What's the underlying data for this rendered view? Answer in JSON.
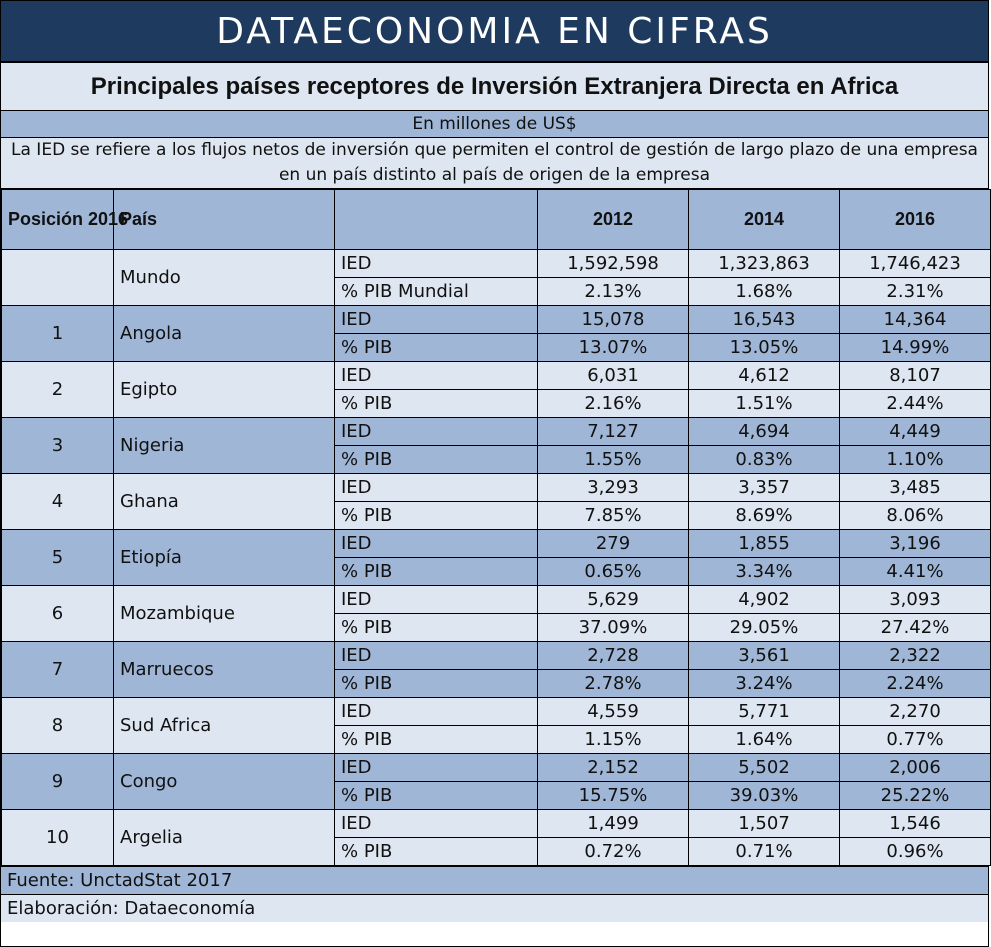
{
  "banner": "DATAECONOMIA EN CIFRAS",
  "title": "Principales países receptores de Inversión Extranjera Directa en Africa",
  "units": "En millones de US$",
  "note": "La IED se refiere a los flujos netos de inversión que permiten el control de gestión de largo plazo de una empresa en un país distinto al país de origen de la empresa",
  "headers": {
    "position": "Posición 2016",
    "country": "País",
    "metric": "",
    "y2012": "2012",
    "y2014": "2014",
    "y2016": "2016"
  },
  "rows": [
    {
      "pos": "",
      "country": "Mundo",
      "m1": "IED",
      "v1": [
        "1,592,598",
        "1,323,863",
        "1,746,423"
      ],
      "m2": "% PIB Mundial",
      "v2": [
        "2.13%",
        "1.68%",
        "2.31%"
      ]
    },
    {
      "pos": "1",
      "country": "Angola",
      "m1": "IED",
      "v1": [
        "15,078",
        "16,543",
        "14,364"
      ],
      "m2": "% PIB",
      "v2": [
        "13.07%",
        "13.05%",
        "14.99%"
      ]
    },
    {
      "pos": "2",
      "country": "Egipto",
      "m1": "IED",
      "v1": [
        "6,031",
        "4,612",
        "8,107"
      ],
      "m2": "% PIB",
      "v2": [
        "2.16%",
        "1.51%",
        "2.44%"
      ]
    },
    {
      "pos": "3",
      "country": "Nigeria",
      "m1": "IED",
      "v1": [
        "7,127",
        "4,694",
        "4,449"
      ],
      "m2": "% PIB",
      "v2": [
        "1.55%",
        "0.83%",
        "1.10%"
      ]
    },
    {
      "pos": "4",
      "country": "Ghana",
      "m1": "IED",
      "v1": [
        "3,293",
        "3,357",
        "3,485"
      ],
      "m2": "% PIB",
      "v2": [
        "7.85%",
        "8.69%",
        "8.06%"
      ]
    },
    {
      "pos": "5",
      "country": "Etiopía",
      "m1": "IED",
      "v1": [
        "279",
        "1,855",
        "3,196"
      ],
      "m2": "% PIB",
      "v2": [
        "0.65%",
        "3.34%",
        "4.41%"
      ]
    },
    {
      "pos": "6",
      "country": "Mozambique",
      "m1": "IED",
      "v1": [
        "5,629",
        "4,902",
        "3,093"
      ],
      "m2": "% PIB",
      "v2": [
        "37.09%",
        "29.05%",
        "27.42%"
      ]
    },
    {
      "pos": "7",
      "country": "Marruecos",
      "m1": "IED",
      "v1": [
        "2,728",
        "3,561",
        "2,322"
      ],
      "m2": "% PIB",
      "v2": [
        "2.78%",
        "3.24%",
        "2.24%"
      ]
    },
    {
      "pos": "8",
      "country": "Sud Africa",
      "m1": "IED",
      "v1": [
        "4,559",
        "5,771",
        "2,270"
      ],
      "m2": "% PIB",
      "v2": [
        "1.15%",
        "1.64%",
        "0.77%"
      ]
    },
    {
      "pos": "9",
      "country": "Congo",
      "m1": "IED",
      "v1": [
        "2,152",
        "5,502",
        "2,006"
      ],
      "m2": "% PIB",
      "v2": [
        "15.75%",
        "39.03%",
        "25.22%"
      ]
    },
    {
      "pos": "10",
      "country": "Argelia",
      "m1": "IED",
      "v1": [
        "1,499",
        "1,507",
        "1,546"
      ],
      "m2": "% PIB",
      "v2": [
        "0.72%",
        "0.71%",
        "0.96%"
      ]
    }
  ],
  "footer": {
    "source": "Fuente: UnctadStat 2017",
    "elaboration": "Elaboración: Dataeconomía"
  },
  "colors": {
    "banner_bg": "#1f3a5f",
    "band_blue": "#9fb6d6",
    "band_light": "#dde6f1"
  }
}
